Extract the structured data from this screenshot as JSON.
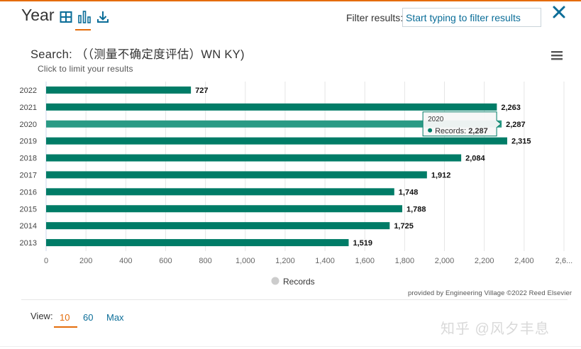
{
  "header": {
    "title": "Year",
    "filter_label": "Filter results:",
    "filter_placeholder": "Start typing to filter results",
    "icons": [
      "table-icon",
      "bar-chart-icon",
      "download-icon"
    ],
    "close_icon": "close-icon",
    "menu_icon": "menu-icon"
  },
  "chart_data": {
    "type": "bar",
    "orientation": "horizontal",
    "title": "Search: （（测量不确定度评估）WN KY)",
    "subtitle": "Click to limit your results",
    "categories": [
      "2022",
      "2021",
      "2020",
      "2019",
      "2018",
      "2017",
      "2016",
      "2015",
      "2014",
      "2013"
    ],
    "series": [
      {
        "name": "Records",
        "values": [
          727,
          2263,
          2287,
          2315,
          2084,
          1912,
          1748,
          1788,
          1725,
          1519
        ]
      }
    ],
    "data_labels": [
      "727",
      "2,263",
      "2,287",
      "2,315",
      "2,084",
      "1,912",
      "1,748",
      "1,788",
      "1,725",
      "1,519"
    ],
    "x_ticks": [
      "0",
      "200",
      "400",
      "600",
      "800",
      "1,000",
      "1,200",
      "1,400",
      "1,600",
      "1,800",
      "2,000",
      "2,200",
      "2,400",
      "2,6..."
    ],
    "xlim": [
      0,
      2600
    ],
    "grid": true,
    "legend": "bottom-center",
    "colors": {
      "bar": "#007c67",
      "bar_highlight": "#2a9a85",
      "legend_marker": "#cccccc"
    },
    "tooltip": {
      "category": "2020",
      "series": "Records",
      "value": "2,287"
    },
    "credits": "provided by Engineering Village ©2022 Reed Elsevier"
  },
  "footer": {
    "view_label": "View:",
    "options": [
      "10",
      "60",
      "Max"
    ],
    "selected": "10",
    "accent_color": "#e46c0a"
  },
  "watermark": "知乎 @风夕丰息"
}
